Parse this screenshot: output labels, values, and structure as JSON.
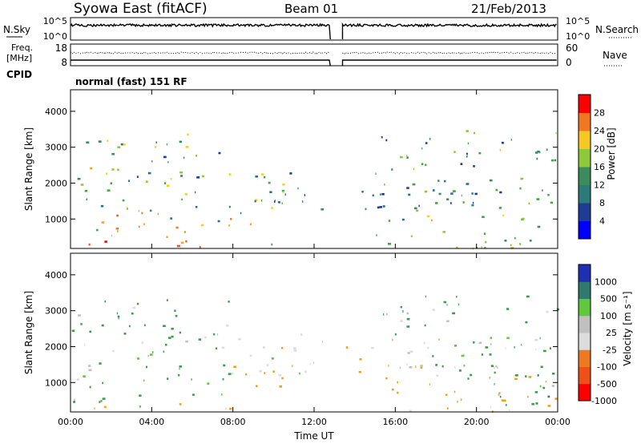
{
  "header": {
    "station": "Syowa East (fitACF)",
    "beam": "Beam 01",
    "date": "21/Feb/2013"
  },
  "top_panels": {
    "nsky_label": "N.Sky",
    "nsearch_label": "N.Search",
    "noise_ticks": [
      "10^5",
      "10^0"
    ],
    "freq_label_1": "Freq.",
    "freq_label_2": "[MHz]",
    "freq_ticks": [
      "18",
      "8"
    ],
    "nave_label": "Nave",
    "nave_ticks": [
      "60",
      "0"
    ],
    "cpid_label": "CPID",
    "cpid_value": "normal (fast) 151 RF"
  },
  "x_axis": {
    "label": "Time UT",
    "ticks": [
      "00:00",
      "04:00",
      "08:00",
      "12:00",
      "16:00",
      "20:00",
      "00:00"
    ]
  },
  "colors": {
    "power": [
      "#0000ff",
      "#1e3c96",
      "#2c6e8c",
      "#3a8c5a",
      "#3fa83f",
      "#8fc83c",
      "#e8d820",
      "#f5a623",
      "#f07820",
      "#f05018",
      "#ff0000"
    ],
    "velocity": [
      "#1e2fb4",
      "#1e4c8c",
      "#2f7a6e",
      "#3c9a4a",
      "#5fc83c",
      "#c0c0c0",
      "#dcdcdc",
      "#f0a020",
      "#f07820",
      "#f05018",
      "#ff0000"
    ]
  },
  "chart_data": [
    {
      "type": "heatmap",
      "name": "power",
      "ylabel": "Slant Range [km]",
      "yticks": [
        1000,
        2000,
        3000,
        4000
      ],
      "ylim": [
        180,
        4600
      ],
      "xlim_hours": [
        0,
        24
      ],
      "colorbar_label": "Power [dB]",
      "colorbar_ticks": [
        4,
        8,
        12,
        16,
        20,
        24,
        28
      ],
      "colorbar_range": [
        0,
        30
      ],
      "data_gap_hours": [
        12.8,
        13.4
      ],
      "regions": [
        {
          "t": [
            0,
            8
          ],
          "r": [
            200,
            450
          ],
          "v": [
            18,
            30
          ]
        },
        {
          "t": [
            0,
            8
          ],
          "r": [
            450,
            1300
          ],
          "v": [
            6,
            26
          ]
        },
        {
          "t": [
            0,
            8
          ],
          "r": [
            1300,
            3400
          ],
          "v": [
            4,
            20
          ]
        },
        {
          "t": [
            7.5,
            10.5
          ],
          "r": [
            200,
            350
          ],
          "v": [
            8,
            20
          ]
        },
        {
          "t": [
            7.5,
            10.5
          ],
          "r": [
            800,
            2300
          ],
          "v": [
            6,
            22
          ]
        },
        {
          "t": [
            9,
            12.7
          ],
          "r": [
            1200,
            2400
          ],
          "v": [
            4,
            14
          ]
        },
        {
          "t": [
            13.4,
            20
          ],
          "r": [
            1300,
            2200
          ],
          "v": [
            4,
            12
          ]
        },
        {
          "t": [
            15,
            24
          ],
          "r": [
            200,
            1200
          ],
          "v": [
            6,
            22
          ]
        },
        {
          "t": [
            15,
            24
          ],
          "r": [
            1200,
            3500
          ],
          "v": [
            4,
            16
          ]
        }
      ]
    },
    {
      "type": "heatmap",
      "name": "velocity",
      "ylabel": "Slant Range [km]",
      "yticks": [
        1000,
        2000,
        3000,
        4000
      ],
      "ylim": [
        180,
        4600
      ],
      "xlim_hours": [
        0,
        24
      ],
      "colorbar_label": "Velocity [m s⁻¹]",
      "colorbar_ticks": [
        1000,
        500,
        100,
        25,
        -25,
        -100,
        -500,
        -1000
      ],
      "data_gap_hours": [
        12.8,
        13.4
      ],
      "regions": [
        {
          "t": [
            0,
            8
          ],
          "r": [
            200,
            450
          ],
          "v": [
            -300,
            100
          ]
        },
        {
          "t": [
            0,
            8
          ],
          "r": [
            450,
            1300
          ],
          "v": [
            -100,
            500
          ]
        },
        {
          "t": [
            0,
            8
          ],
          "r": [
            1300,
            3400
          ],
          "v": [
            -100,
            400
          ]
        },
        {
          "t": [
            7.5,
            10.5
          ],
          "r": [
            800,
            2300
          ],
          "v": [
            -500,
            -50
          ]
        },
        {
          "t": [
            9,
            12.7
          ],
          "r": [
            1200,
            2400
          ],
          "v": [
            -100,
            50
          ]
        },
        {
          "t": [
            13.4,
            18
          ],
          "r": [
            1300,
            2200
          ],
          "v": [
            -300,
            30
          ]
        },
        {
          "t": [
            15,
            24
          ],
          "r": [
            200,
            1200
          ],
          "v": [
            -400,
            0
          ]
        },
        {
          "t": [
            19,
            24
          ],
          "r": [
            400,
            1600
          ],
          "v": [
            -100,
            600
          ]
        },
        {
          "t": [
            15,
            24
          ],
          "r": [
            1200,
            3500
          ],
          "v": [
            -100,
            300
          ]
        }
      ]
    }
  ]
}
